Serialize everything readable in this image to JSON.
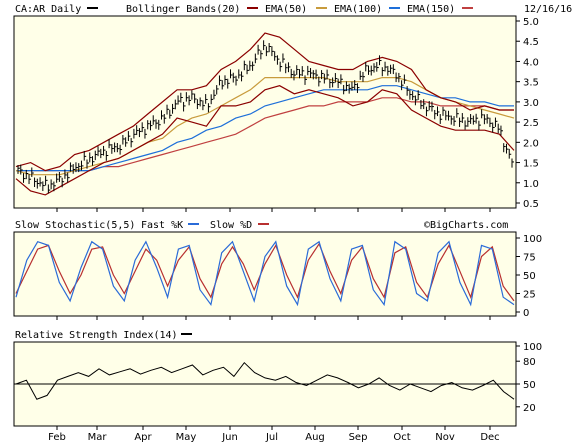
{
  "header": {
    "symbol": "CA:AR Daily",
    "bollinger": "Bollinger Bands(20)",
    "ema50": "EMA(50)",
    "ema100": "EMA(100)",
    "ema150": "EMA(150)",
    "date": "12/16/16"
  },
  "stoch_header": {
    "title": "Slow Stochastic(5,5)",
    "fast": "Fast %K",
    "slow": "Slow %D"
  },
  "rsi_header": {
    "title": "Relative Strength Index(14)"
  },
  "watermark": "©BigCharts.com",
  "colors": {
    "price": "#000000",
    "bollinger": "#8b0000",
    "ema50": "#c89b3c",
    "ema100": "#1e6fd9",
    "ema150": "#c04040",
    "fast": "#2a6bd8",
    "slow": "#b83030",
    "panel_bg": "#ffffe8",
    "rsi_line": "#000000"
  },
  "chart_data": [
    {
      "type": "line",
      "title": "CA:AR Daily",
      "x_ticks": [
        "Feb",
        "Mar",
        "Apr",
        "May",
        "Jun",
        "Jul",
        "Aug",
        "Sep",
        "Oct",
        "Nov",
        "Dec"
      ],
      "y_ticks": [
        "5.0",
        "4.5",
        "4.0",
        "3.5",
        "3.0",
        "2.5",
        "2.0",
        "1.5",
        "1.0",
        "0.5"
      ],
      "ylim": [
        0.5,
        5.0
      ],
      "x": [
        "Jan",
        "Jan",
        "Jan",
        "Feb",
        "Feb",
        "Feb",
        "Mar",
        "Mar",
        "Apr",
        "Apr",
        "Apr",
        "May",
        "May",
        "May",
        "Jun",
        "Jun",
        "Jun",
        "Jul",
        "Jul",
        "Jul",
        "Aug",
        "Aug",
        "Aug",
        "Sep",
        "Sep",
        "Sep",
        "Oct",
        "Oct",
        "Oct",
        "Nov",
        "Nov",
        "Nov",
        "Dec",
        "Dec",
        "Dec"
      ],
      "series": [
        {
          "name": "CA:AR",
          "values": [
            1.3,
            1.1,
            0.9,
            1.1,
            1.4,
            1.6,
            1.8,
            1.9,
            2.2,
            2.4,
            2.6,
            3.0,
            3.1,
            2.9,
            3.5,
            3.6,
            3.9,
            4.4,
            4.0,
            3.7,
            3.7,
            3.6,
            3.5,
            3.3,
            3.8,
            3.9,
            3.7,
            3.2,
            2.9,
            2.7,
            2.6,
            2.5,
            2.6,
            2.4,
            1.5
          ]
        },
        {
          "name": "Bollinger Bands(20)",
          "values": [
            1.4,
            1.5,
            1.3,
            1.4,
            1.7,
            1.8,
            2.0,
            2.2,
            2.4,
            2.7,
            3.0,
            3.3,
            3.3,
            3.4,
            3.8,
            4.0,
            4.3,
            4.7,
            4.6,
            4.3,
            4.0,
            3.9,
            3.8,
            3.8,
            4.0,
            4.1,
            4.0,
            3.8,
            3.3,
            3.1,
            3.0,
            2.8,
            2.9,
            2.8,
            2.8
          ]
        },
        {
          "name": "Bollinger Bands(20) lower",
          "values": [
            1.1,
            0.8,
            0.7,
            0.9,
            1.1,
            1.3,
            1.5,
            1.6,
            1.8,
            2.0,
            2.2,
            2.6,
            2.5,
            2.4,
            2.9,
            2.9,
            3.0,
            3.3,
            3.4,
            3.2,
            3.3,
            3.2,
            3.1,
            2.9,
            3.0,
            3.3,
            3.2,
            2.8,
            2.6,
            2.4,
            2.3,
            2.3,
            2.3,
            2.2,
            1.8
          ]
        },
        {
          "name": "EMA(50)",
          "values": [
            1.3,
            1.2,
            1.2,
            1.2,
            1.3,
            1.4,
            1.5,
            1.6,
            1.8,
            2.0,
            2.1,
            2.4,
            2.6,
            2.7,
            2.9,
            3.1,
            3.3,
            3.6,
            3.6,
            3.6,
            3.6,
            3.6,
            3.5,
            3.5,
            3.5,
            3.6,
            3.6,
            3.5,
            3.3,
            3.1,
            3.0,
            2.9,
            2.8,
            2.7,
            2.6
          ]
        },
        {
          "name": "EMA(100)",
          "values": [
            1.3,
            1.3,
            1.3,
            1.3,
            1.3,
            1.3,
            1.4,
            1.5,
            1.6,
            1.7,
            1.8,
            2.0,
            2.1,
            2.3,
            2.4,
            2.6,
            2.7,
            2.9,
            3.0,
            3.1,
            3.2,
            3.3,
            3.3,
            3.3,
            3.3,
            3.4,
            3.4,
            3.3,
            3.2,
            3.1,
            3.1,
            3.0,
            3.0,
            2.9,
            2.9
          ]
        },
        {
          "name": "EMA(150)",
          "values": [
            1.3,
            1.3,
            1.3,
            1.3,
            1.3,
            1.3,
            1.4,
            1.4,
            1.5,
            1.6,
            1.7,
            1.8,
            1.9,
            2.0,
            2.1,
            2.2,
            2.4,
            2.6,
            2.7,
            2.8,
            2.9,
            2.9,
            3.0,
            3.0,
            3.0,
            3.1,
            3.1,
            3.0,
            3.0,
            2.9,
            2.9,
            2.9,
            2.9,
            2.8,
            2.8
          ]
        }
      ]
    },
    {
      "type": "line",
      "title": "Slow Stochastic(5,5)",
      "y_ticks": [
        "100",
        "75",
        "50",
        "25",
        "0"
      ],
      "ylim": [
        0,
        100
      ],
      "series": [
        {
          "name": "Fast %K",
          "values": [
            20,
            70,
            95,
            90,
            40,
            15,
            60,
            95,
            85,
            35,
            15,
            70,
            95,
            60,
            20,
            85,
            90,
            30,
            10,
            80,
            95,
            55,
            15,
            75,
            95,
            35,
            10,
            85,
            95,
            45,
            15,
            85,
            90,
            30,
            10,
            95,
            85,
            25,
            15,
            80,
            95,
            40,
            10,
            90,
            85,
            20,
            10
          ]
        },
        {
          "name": "Slow %D",
          "values": [
            25,
            55,
            85,
            90,
            55,
            25,
            50,
            85,
            88,
            50,
            25,
            55,
            85,
            70,
            35,
            70,
            88,
            45,
            20,
            65,
            88,
            65,
            30,
            65,
            90,
            50,
            20,
            70,
            92,
            55,
            25,
            70,
            88,
            45,
            20,
            80,
            88,
            40,
            20,
            65,
            90,
            55,
            20,
            75,
            88,
            35,
            15
          ]
        }
      ]
    },
    {
      "type": "line",
      "title": "Relative Strength Index(14)",
      "y_ticks": [
        "100",
        "80",
        "50",
        "20"
      ],
      "ylim": [
        0,
        100
      ],
      "series": [
        {
          "name": "Relative Strength Index(14)",
          "values": [
            50,
            55,
            30,
            35,
            55,
            60,
            65,
            60,
            70,
            62,
            66,
            70,
            63,
            68,
            72,
            65,
            70,
            75,
            62,
            68,
            72,
            60,
            78,
            65,
            58,
            55,
            60,
            52,
            48,
            55,
            62,
            58,
            52,
            45,
            50,
            58,
            48,
            42,
            50,
            45,
            40,
            48,
            52,
            45,
            42,
            48,
            55,
            40,
            30
          ]
        }
      ]
    }
  ]
}
